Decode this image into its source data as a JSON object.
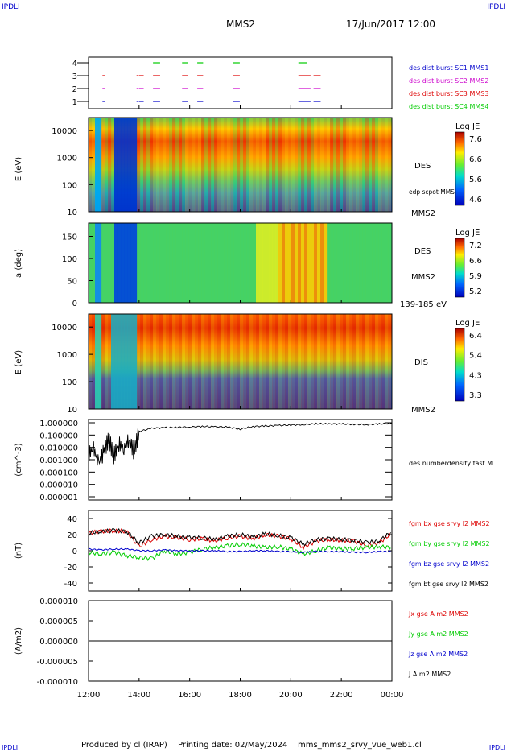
{
  "header": {
    "corner_left": "IPDLI",
    "corner_right": "IPDLI",
    "title": "MMS2",
    "datetime": "17/Jun/2017 12:00"
  },
  "footer": {
    "produced_by": "Produced by cl (IRAP)",
    "printing_date": "Printing date: 02/May/2024",
    "filename": "mms_mms2_srvy_vue_web1.cl",
    "corner_left": "IPDLI",
    "corner_right": "IPDLI"
  },
  "time_axis": [
    "12:00",
    "14:00",
    "16:00",
    "18:00",
    "20:00",
    "22:00",
    "00:00"
  ],
  "colors": {
    "red": "#dd0000",
    "green": "#00cc00",
    "blue": "#0000cc",
    "magenta": "#cc00cc",
    "black": "#000000"
  },
  "chart_data": [
    {
      "type": "scatter",
      "panel": "burst availability",
      "yticks": [
        "1",
        "2",
        "3",
        "4"
      ],
      "legend": [
        {
          "label": "des dist burst SC1 MMS1",
          "color": "#0000cc"
        },
        {
          "label": "des dist burst SC2 MMS2",
          "color": "#cc00cc"
        },
        {
          "label": "des dist burst SC3 MMS3",
          "color": "#dd0000"
        },
        {
          "label": "des dist burst SC4 MMS4",
          "color": "#00cc00"
        }
      ],
      "intervals_hours": [
        [
          12.55,
          12.62
        ],
        [
          13.9,
          13.95
        ],
        [
          14.0,
          14.15
        ],
        [
          14.55,
          14.8
        ],
        [
          15.7,
          15.9
        ],
        [
          16.3,
          16.5
        ],
        [
          17.7,
          17.95
        ],
        [
          20.3,
          20.75
        ],
        [
          20.9,
          21.15
        ]
      ],
      "mms4_intervals_hours": [
        [
          14.55,
          14.8
        ],
        [
          15.7,
          15.9
        ],
        [
          16.3,
          16.5
        ],
        [
          17.7,
          17.95
        ],
        [
          20.3,
          20.6
        ]
      ]
    },
    {
      "type": "heatmap",
      "panel": "DES energy spectrogram",
      "ylabel": "E (eV)",
      "yticks": [
        "10000",
        "1000",
        "100",
        "10"
      ],
      "ylim": [
        10,
        30000
      ],
      "yscale": "log",
      "right_labels": [
        "DES",
        "edp scpot MMS2",
        "MMS2"
      ],
      "colorbar": {
        "title": "Log JE",
        "ticks": [
          "7.6",
          "6.6",
          "5.6",
          "4.6"
        ]
      }
    },
    {
      "type": "heatmap",
      "panel": "DES pitch angle",
      "ylabel": "a (deg)",
      "yticks": [
        "150",
        "100",
        "50",
        "0"
      ],
      "ylim": [
        0,
        180
      ],
      "right_labels": [
        "DES",
        "MMS2",
        "139-185 eV"
      ],
      "colorbar": {
        "title": "Log JE",
        "ticks": [
          "7.2",
          "6.6",
          "5.9",
          "5.2"
        ]
      }
    },
    {
      "type": "heatmap",
      "panel": "DIS energy spectrogram",
      "ylabel": "E (eV)",
      "yticks": [
        "10000",
        "1000",
        "100",
        "10"
      ],
      "ylim": [
        10,
        30000
      ],
      "yscale": "log",
      "right_labels": [
        "DIS",
        "MMS2"
      ],
      "colorbar": {
        "title": "Log JE",
        "ticks": [
          "6.4",
          "5.4",
          "4.3",
          "3.3"
        ]
      }
    },
    {
      "type": "line",
      "panel": "number density",
      "ylabel": "(cm^-3)",
      "yscale": "log",
      "yticks": [
        "1.000000",
        "0.100000",
        "0.010000",
        "0.001000",
        "0.000100",
        "0.000010",
        "0.000001"
      ],
      "legend": [
        {
          "label": "des numberdensity fast M",
          "color": "#000000"
        }
      ],
      "x_hours": [
        12.0,
        12.2,
        12.4,
        12.6,
        12.8,
        13.0,
        13.2,
        13.4,
        13.6,
        13.8,
        14.0,
        14.5,
        15.0,
        15.5,
        16.0,
        16.5,
        17.0,
        17.5,
        18.0,
        18.5,
        19.0,
        19.5,
        20.0,
        20.5,
        21.0,
        21.5,
        22.0,
        22.5,
        23.0,
        23.5,
        24.0
      ],
      "values": [
        0.003,
        0.008,
        0.0005,
        0.004,
        0.05,
        0.002,
        0.02,
        0.008,
        0.05,
        0.004,
        0.2,
        0.35,
        0.4,
        0.42,
        0.45,
        0.5,
        0.48,
        0.45,
        0.3,
        0.5,
        0.55,
        0.6,
        0.65,
        0.7,
        0.85,
        0.8,
        0.8,
        0.75,
        0.7,
        0.8,
        0.9
      ]
    },
    {
      "type": "line",
      "panel": "magnetic field",
      "ylabel": "(nT)",
      "ylim": [
        -50,
        50
      ],
      "yticks": [
        "40",
        "20",
        "0",
        "-20",
        "-40"
      ],
      "legend": [
        {
          "label": "fgm bx gse srvy l2 MMS2",
          "color": "#dd0000"
        },
        {
          "label": "fgm by gse srvy l2 MMS2",
          "color": "#00cc00"
        },
        {
          "label": "fgm bz gse srvy l2 MMS2",
          "color": "#0000cc"
        },
        {
          "label": "fgm bt gse srvy l2 MMS2",
          "color": "#000000"
        }
      ],
      "x_hours": [
        12.0,
        12.5,
        13.0,
        13.5,
        14.0,
        14.5,
        15.0,
        15.5,
        16.0,
        16.5,
        17.0,
        17.5,
        18.0,
        18.5,
        19.0,
        19.5,
        20.0,
        20.5,
        21.0,
        21.5,
        22.0,
        22.5,
        23.0,
        23.5,
        24.0
      ],
      "series": [
        {
          "name": "fgm bx gse srvy l2 MMS2",
          "values": [
            22,
            24,
            25,
            24,
            5,
            14,
            18,
            16,
            14,
            15,
            12,
            16,
            18,
            15,
            20,
            18,
            15,
            4,
            12,
            14,
            13,
            12,
            6,
            10,
            22
          ]
        },
        {
          "name": "fgm by gse srvy l2 MMS2",
          "values": [
            -2,
            -4,
            -2,
            -6,
            -8,
            -10,
            0,
            -4,
            -2,
            2,
            4,
            6,
            8,
            6,
            4,
            5,
            2,
            -4,
            0,
            4,
            2,
            3,
            4,
            5,
            4
          ]
        },
        {
          "name": "fgm bz gse srvy l2 MMS2",
          "values": [
            2,
            1,
            2,
            2,
            0,
            0,
            1,
            0,
            0,
            0,
            0,
            -1,
            -1,
            0,
            0,
            -1,
            -1,
            -2,
            -1,
            -1,
            -1,
            -2,
            -2,
            -1,
            -1
          ]
        },
        {
          "name": "fgm bt gse srvy l2 MMS2",
          "values": [
            22,
            24,
            25,
            24,
            10,
            18,
            20,
            18,
            16,
            16,
            14,
            18,
            20,
            17,
            21,
            19,
            16,
            8,
            14,
            15,
            14,
            13,
            10,
            12,
            24
          ]
        }
      ]
    },
    {
      "type": "line",
      "panel": "current density",
      "ylabel": "(A/m2)",
      "ylim": [
        -0.0001,
        0.0001
      ],
      "yticks": [
        "0.000010",
        "0.000005",
        "0.000000",
        "-0.000005",
        "-0.000010"
      ],
      "legend": [
        {
          "label": "Jx gse A m2 MMS2",
          "color": "#dd0000"
        },
        {
          "label": "Jy gse A m2 MMS2",
          "color": "#00cc00"
        },
        {
          "label": "Jz gse A m2 MMS2",
          "color": "#0000cc"
        },
        {
          "label": "J A m2 MMS2",
          "color": "#000000"
        }
      ]
    }
  ]
}
